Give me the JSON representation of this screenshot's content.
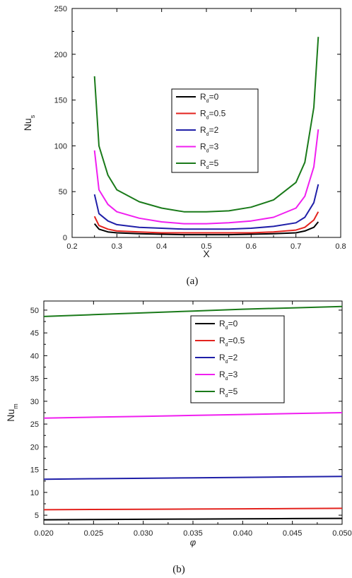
{
  "chart_data": [
    {
      "type": "line",
      "panel_label": "(a)",
      "xlabel": "X",
      "ylabel": "Nu",
      "ylabel_sub": "s",
      "xlim": [
        0.2,
        0.8
      ],
      "ylim": [
        0,
        250
      ],
      "xticks": [
        "0.2",
        "0.3",
        "0.4",
        "0.5",
        "0.6",
        "0.7",
        "0.8"
      ],
      "yticks": [
        "0",
        "50",
        "100",
        "150",
        "200",
        "250"
      ],
      "grid": false,
      "legend": "upper-middle",
      "x": [
        0.25,
        0.26,
        0.28,
        0.3,
        0.35,
        0.4,
        0.45,
        0.5,
        0.55,
        0.6,
        0.65,
        0.7,
        0.72,
        0.74,
        0.75
      ],
      "series": [
        {
          "name_main": "R",
          "name_sub": "d",
          "name_rest": "=0",
          "color": "#000000",
          "values": [
            15,
            9,
            6,
            5,
            4,
            3.5,
            3,
            3,
            3,
            3.5,
            4,
            5,
            7,
            11,
            17
          ]
        },
        {
          "name_main": "R",
          "name_sub": "d",
          "name_rest": "=0.5",
          "color": "#e3231e",
          "values": [
            23,
            13,
            9,
            7,
            6,
            5,
            5,
            5,
            5,
            5,
            6,
            8,
            11,
            19,
            28
          ]
        },
        {
          "name_main": "R",
          "name_sub": "d",
          "name_rest": "=2",
          "color": "#1f1fa8",
          "values": [
            47,
            26,
            18,
            14,
            11,
            10,
            9,
            9,
            9,
            10,
            12,
            16,
            22,
            38,
            58
          ]
        },
        {
          "name_main": "R",
          "name_sub": "d",
          "name_rest": "=3",
          "color": "#f01ff0",
          "values": [
            95,
            52,
            36,
            28,
            21,
            17,
            15,
            15,
            16,
            18,
            22,
            32,
            45,
            77,
            118
          ]
        },
        {
          "name_main": "R",
          "name_sub": "d",
          "name_rest": "=5",
          "color": "#1a7a1a",
          "values": [
            176,
            100,
            68,
            52,
            39,
            32,
            28,
            28,
            29,
            33,
            41,
            60,
            82,
            142,
            219
          ]
        }
      ]
    },
    {
      "type": "line",
      "panel_label": "(b)",
      "xlabel": "φ",
      "ylabel": "Nu",
      "ylabel_sub": "m",
      "xlim": [
        0.02,
        0.05
      ],
      "ylim": [
        3,
        52
      ],
      "xticks": [
        "0.020",
        "0.025",
        "0.030",
        "0.035",
        "0.040",
        "0.045",
        "0.050"
      ],
      "yticks": [
        "5",
        "10",
        "15",
        "20",
        "25",
        "30",
        "35",
        "40",
        "45",
        "50"
      ],
      "grid": false,
      "legend": "upper-right",
      "x": [
        0.02,
        0.025,
        0.03,
        0.035,
        0.04,
        0.045,
        0.05
      ],
      "series": [
        {
          "name_main": "R",
          "name_sub": "d",
          "name_rest": "=0",
          "color": "#000000",
          "values": [
            4.0,
            4.05,
            4.1,
            4.15,
            4.2,
            4.25,
            4.3
          ]
        },
        {
          "name_main": "R",
          "name_sub": "d",
          "name_rest": "=0.5",
          "color": "#e3231e",
          "values": [
            6.2,
            6.25,
            6.3,
            6.35,
            6.4,
            6.45,
            6.5
          ]
        },
        {
          "name_main": "R",
          "name_sub": "d",
          "name_rest": "=2",
          "color": "#1f1fa8",
          "values": [
            12.9,
            13.0,
            13.1,
            13.2,
            13.3,
            13.4,
            13.5
          ]
        },
        {
          "name_main": "R",
          "name_sub": "d",
          "name_rest": "=3",
          "color": "#f01ff0",
          "values": [
            26.3,
            26.5,
            26.7,
            26.9,
            27.1,
            27.3,
            27.5
          ]
        },
        {
          "name_main": "R",
          "name_sub": "d",
          "name_rest": "=5",
          "color": "#1a7a1a",
          "values": [
            48.6,
            49.0,
            49.4,
            49.8,
            50.2,
            50.5,
            50.8
          ]
        }
      ]
    }
  ]
}
